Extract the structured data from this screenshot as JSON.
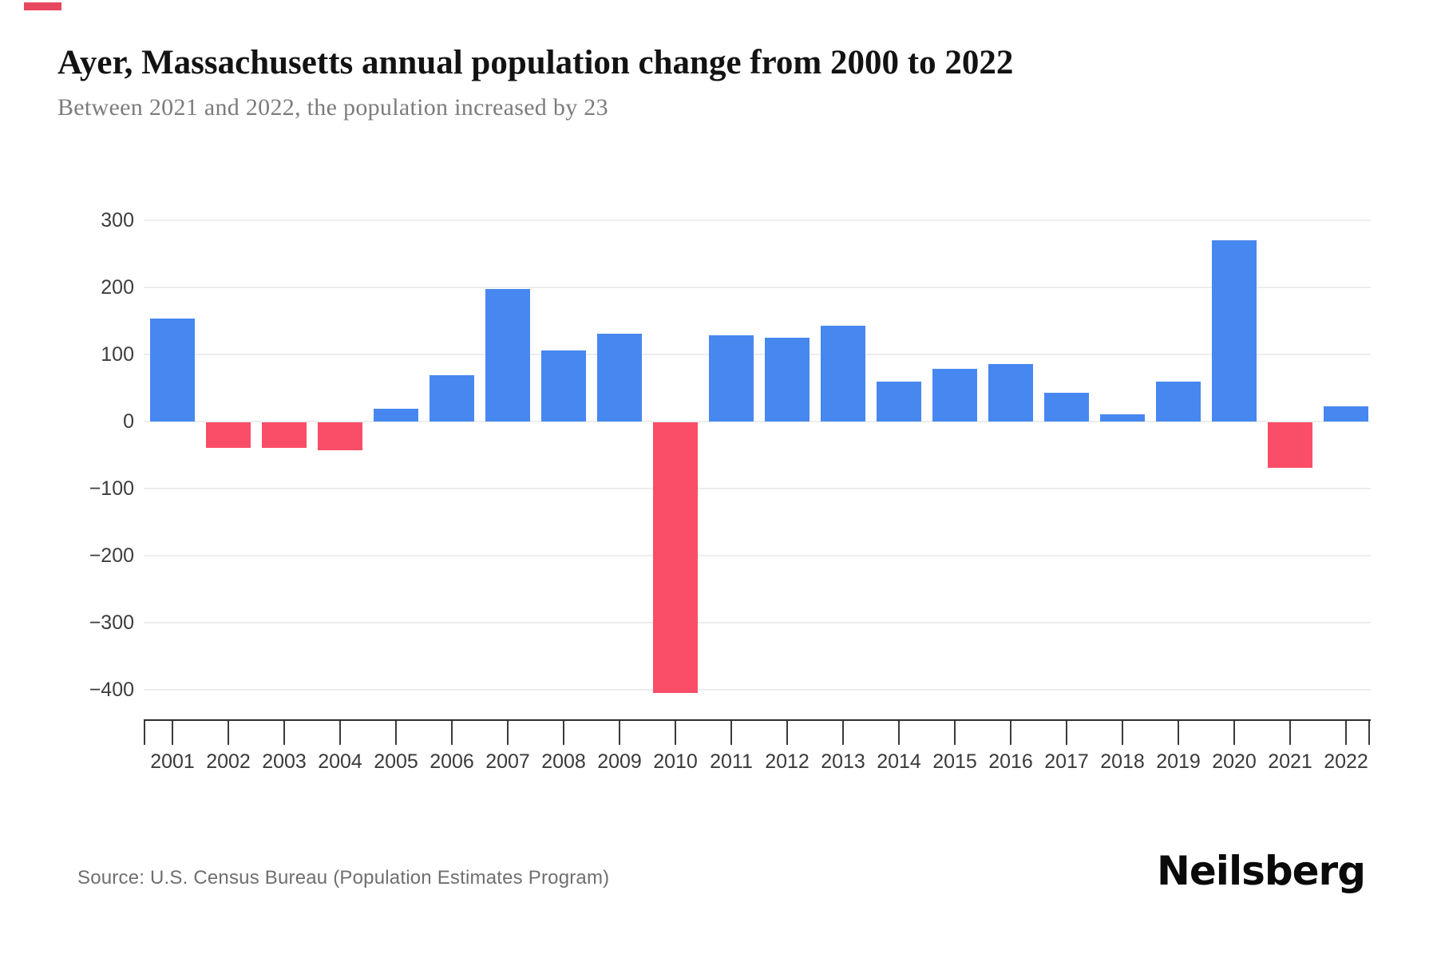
{
  "page": {
    "title": "Ayer, Massachusetts annual population change from 2000 to 2022",
    "subtitle": "Between 2021 and 2022, the population increased by 23",
    "source": "Source: U.S. Census Bureau (Population Estimates Program)",
    "logo": "Neilsberg"
  },
  "colors": {
    "positive_bar": "#4787f0",
    "negative_bar": "#fa4d68",
    "accent_mark": "#e8485f"
  },
  "chart_data": {
    "type": "bar",
    "title": "Ayer, Massachusetts annual population change from 2000 to 2022",
    "subtitle": "Between 2021 and 2022, the population increased by 23",
    "xlabel": "",
    "ylabel": "",
    "categories": [
      "2001",
      "2002",
      "2003",
      "2004",
      "2005",
      "2006",
      "2007",
      "2008",
      "2009",
      "2010",
      "2011",
      "2012",
      "2013",
      "2014",
      "2015",
      "2016",
      "2017",
      "2018",
      "2019",
      "2020",
      "2021",
      "2022"
    ],
    "values": [
      153,
      -38,
      -38,
      -42,
      19,
      69,
      198,
      106,
      131,
      -403,
      128,
      125,
      143,
      59,
      79,
      86,
      43,
      11,
      59,
      270,
      -68,
      23
    ],
    "ylim": [
      -450,
      330
    ],
    "yticks": [
      300,
      200,
      100,
      0,
      -100,
      -200,
      -300,
      -400
    ],
    "grid": true,
    "legend": "none",
    "positive_color": "#4787f0",
    "negative_color": "#fa4d68"
  }
}
